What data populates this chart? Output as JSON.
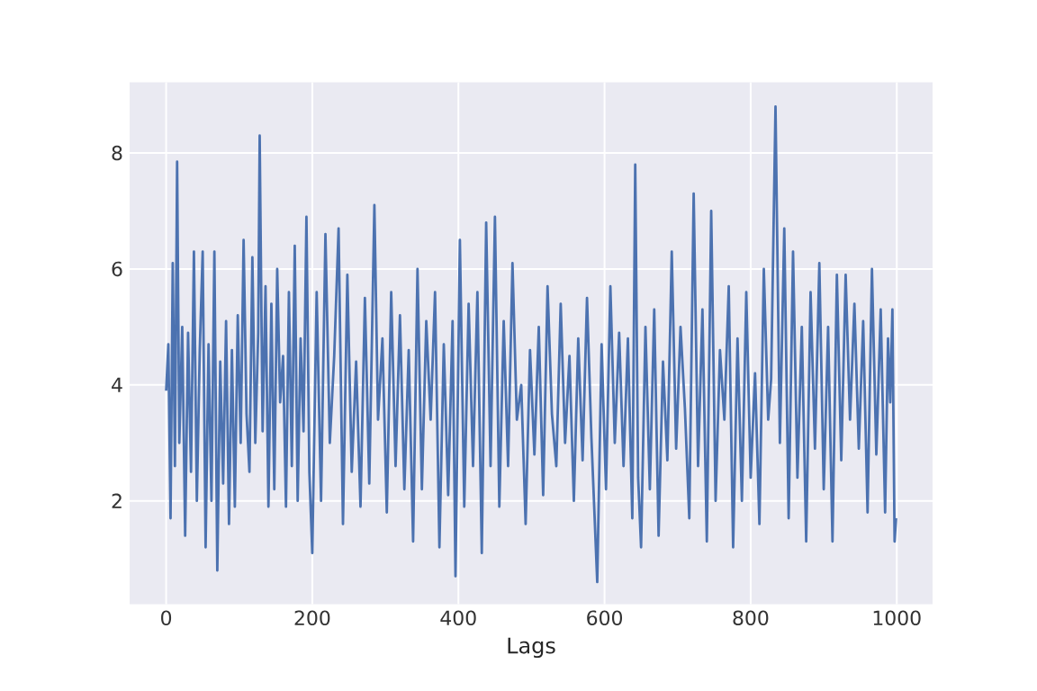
{
  "chart_data": {
    "type": "line",
    "xlabel": "Lags",
    "xlim": [
      -50,
      1049
    ],
    "ylim": [
      0.22,
      9.22
    ],
    "xticks": [
      0,
      200,
      400,
      600,
      800,
      1000
    ],
    "yticks": [
      2,
      4,
      6,
      8
    ],
    "grid": true,
    "marker": "none",
    "line_style": "solid",
    "series": [
      {
        "color": "#4c72b0",
        "x": [
          0,
          3,
          6,
          9,
          12,
          15,
          18,
          22,
          26,
          30,
          34,
          38,
          42,
          46,
          50,
          54,
          58,
          62,
          66,
          70,
          74,
          78,
          82,
          86,
          90,
          94,
          98,
          102,
          106,
          110,
          114,
          118,
          122,
          126,
          128,
          132,
          136,
          140,
          144,
          148,
          152,
          156,
          160,
          164,
          168,
          172,
          176,
          180,
          184,
          188,
          192,
          196,
          200,
          206,
          212,
          218,
          224,
          230,
          236,
          242,
          248,
          254,
          260,
          266,
          272,
          278,
          285,
          290,
          296,
          302,
          308,
          314,
          320,
          326,
          332,
          338,
          344,
          350,
          356,
          362,
          368,
          374,
          380,
          386,
          392,
          396,
          402,
          408,
          414,
          420,
          426,
          432,
          438,
          444,
          450,
          456,
          462,
          468,
          474,
          480,
          486,
          492,
          498,
          504,
          510,
          516,
          522,
          528,
          534,
          540,
          546,
          552,
          558,
          564,
          570,
          576,
          582,
          590,
          596,
          602,
          608,
          614,
          620,
          626,
          632,
          638,
          642,
          646,
          650,
          656,
          662,
          668,
          674,
          680,
          686,
          692,
          698,
          704,
          710,
          716,
          722,
          728,
          734,
          740,
          746,
          752,
          758,
          764,
          770,
          776,
          782,
          788,
          794,
          800,
          806,
          812,
          818,
          824,
          828,
          834,
          840,
          846,
          852,
          858,
          864,
          870,
          876,
          882,
          888,
          894,
          900,
          906,
          912,
          918,
          924,
          930,
          936,
          942,
          948,
          954,
          960,
          966,
          972,
          978,
          984,
          988,
          991,
          994,
          997,
          999
        ],
        "values": [
          3.9,
          4.7,
          1.7,
          6.1,
          2.6,
          7.85,
          3.0,
          5.0,
          1.4,
          4.9,
          2.5,
          6.3,
          2.0,
          4.6,
          6.3,
          1.2,
          4.7,
          2.0,
          6.3,
          0.8,
          4.4,
          2.3,
          5.1,
          1.6,
          4.6,
          1.9,
          5.2,
          3.0,
          6.5,
          3.5,
          2.5,
          6.2,
          3.0,
          4.9,
          8.3,
          3.2,
          5.7,
          1.9,
          5.4,
          2.2,
          6.0,
          3.7,
          4.5,
          1.9,
          5.6,
          2.6,
          6.4,
          2.0,
          4.8,
          3.2,
          6.9,
          2.5,
          1.1,
          5.6,
          2.0,
          6.6,
          3.0,
          4.5,
          6.7,
          1.6,
          5.9,
          2.5,
          4.4,
          1.9,
          5.5,
          2.3,
          7.1,
          3.4,
          4.8,
          1.8,
          5.6,
          2.6,
          5.2,
          2.2,
          4.6,
          1.3,
          6.0,
          2.2,
          5.1,
          3.4,
          5.6,
          1.2,
          4.7,
          2.1,
          5.1,
          0.7,
          6.5,
          1.9,
          5.4,
          2.6,
          5.6,
          1.1,
          6.8,
          2.6,
          6.9,
          1.9,
          5.1,
          2.6,
          6.1,
          3.4,
          4.0,
          1.6,
          4.6,
          2.8,
          5.0,
          2.1,
          5.7,
          3.5,
          2.6,
          5.4,
          3.0,
          4.5,
          2.0,
          4.8,
          2.7,
          5.5,
          3.1,
          0.6,
          4.7,
          2.2,
          5.7,
          3.0,
          4.9,
          2.6,
          4.8,
          1.7,
          7.8,
          2.4,
          1.2,
          5.0,
          2.2,
          5.3,
          1.4,
          4.4,
          2.7,
          6.3,
          2.9,
          5.0,
          3.6,
          1.7,
          7.3,
          2.6,
          5.3,
          1.3,
          7.0,
          2.0,
          4.6,
          3.4,
          5.7,
          1.2,
          4.8,
          2.0,
          5.6,
          2.4,
          4.2,
          1.6,
          6.0,
          3.4,
          4.1,
          8.8,
          3.0,
          6.7,
          1.7,
          6.3,
          2.4,
          5.0,
          1.3,
          5.6,
          2.9,
          6.1,
          2.2,
          5.0,
          1.3,
          5.9,
          2.7,
          5.9,
          3.4,
          5.4,
          2.9,
          5.1,
          1.8,
          6.0,
          2.8,
          5.3,
          1.8,
          4.8,
          3.7,
          5.3,
          1.3,
          1.7
        ]
      }
    ]
  }
}
